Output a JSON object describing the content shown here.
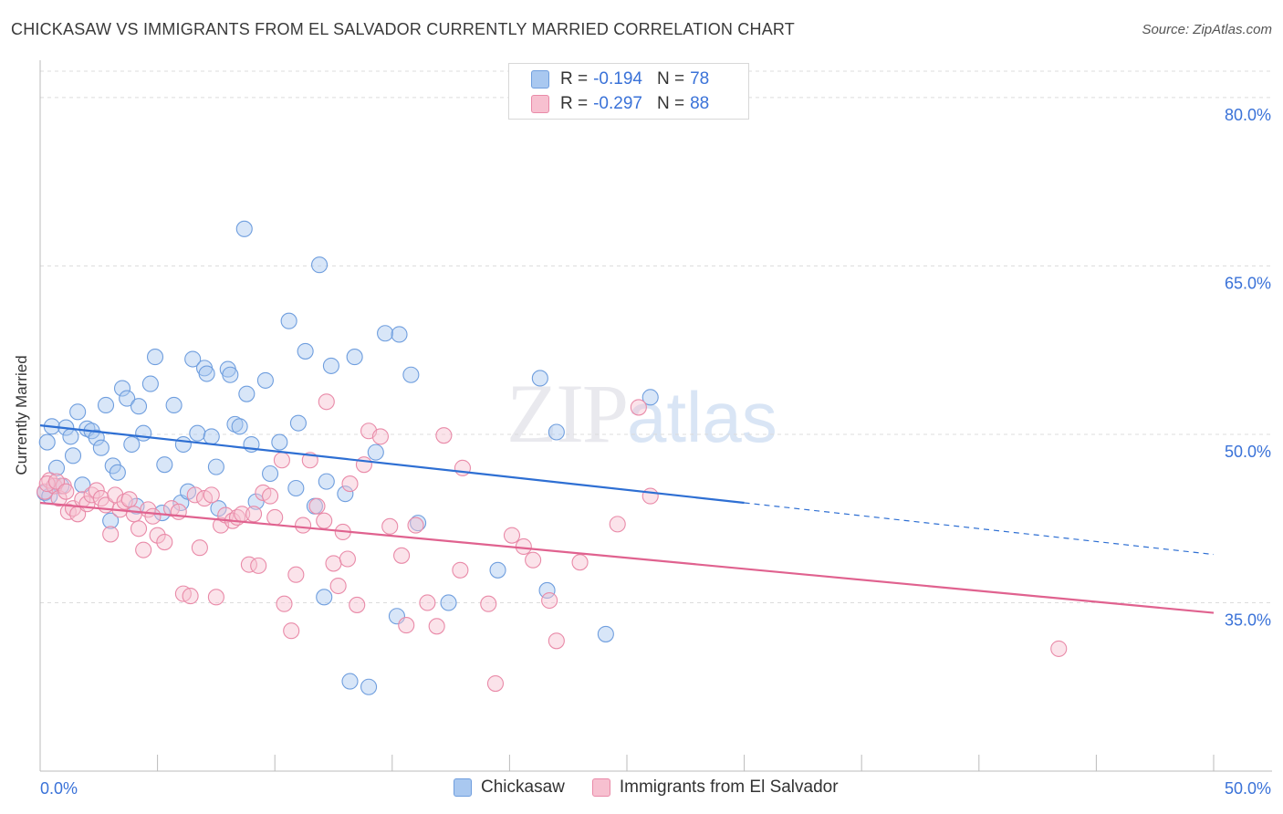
{
  "title": "CHICKASAW VS IMMIGRANTS FROM EL SALVADOR CURRENTLY MARRIED CORRELATION CHART",
  "source": "Source: ZipAtlas.com",
  "watermark": {
    "zip": "ZIP",
    "atlas": "atlas"
  },
  "legend_top": {
    "rows": [
      {
        "r_label": "R =",
        "r_value": "-0.194",
        "n_label": "N =",
        "n_value": "78",
        "color": "#a9c8f0",
        "border": "#6f9ede"
      },
      {
        "r_label": "R =",
        "r_value": "-0.297",
        "n_label": "N =",
        "n_value": "88",
        "color": "#f7c0d0",
        "border": "#e98aa8"
      }
    ]
  },
  "legend_bottom": {
    "items": [
      {
        "label": "Chickasaw",
        "color": "#a9c8f0",
        "border": "#6f9ede"
      },
      {
        "label": "Immigrants from El Salvador",
        "color": "#f7c0d0",
        "border": "#e98aa8"
      }
    ]
  },
  "chart_data": {
    "type": "scatter",
    "title": "CHICKASAW VS IMMIGRANTS FROM EL SALVADOR CURRENTLY MARRIED CORRELATION CHART",
    "xlabel": "",
    "ylabel": "Currently Married",
    "xlim": [
      0,
      50
    ],
    "ylim": [
      20,
      83
    ],
    "x_tick_labels": [
      "0.0%",
      "50.0%"
    ],
    "y_ticks": [
      35,
      50,
      65,
      80
    ],
    "y_tick_labels": [
      "35.0%",
      "50.0%",
      "65.0%",
      "80.0%"
    ],
    "grid": true,
    "series": [
      {
        "name": "Chickasaw",
        "color": "#6f9ede",
        "fill": "#a9c8f0",
        "trend": {
          "x0": 0,
          "y0": 50.8,
          "x1": 30,
          "y1": 43.9,
          "dash_to_x": 50,
          "dash_to_y": 39.3
        },
        "points": [
          [
            0.3,
            49.3
          ],
          [
            0.5,
            50.7
          ],
          [
            0.7,
            47.0
          ],
          [
            0.9,
            45.4
          ],
          [
            1.1,
            50.6
          ],
          [
            1.3,
            49.8
          ],
          [
            1.4,
            48.1
          ],
          [
            1.6,
            52.0
          ],
          [
            1.8,
            45.5
          ],
          [
            2.0,
            50.5
          ],
          [
            2.2,
            50.3
          ],
          [
            2.4,
            49.7
          ],
          [
            2.6,
            48.8
          ],
          [
            2.8,
            52.6
          ],
          [
            3.0,
            42.3
          ],
          [
            3.1,
            47.2
          ],
          [
            3.3,
            46.6
          ],
          [
            3.5,
            54.1
          ],
          [
            3.7,
            53.2
          ],
          [
            3.9,
            49.1
          ],
          [
            4.1,
            43.6
          ],
          [
            4.2,
            52.5
          ],
          [
            4.4,
            50.1
          ],
          [
            4.7,
            54.5
          ],
          [
            4.9,
            56.9
          ],
          [
            5.2,
            43.0
          ],
          [
            5.3,
            47.3
          ],
          [
            5.7,
            52.6
          ],
          [
            6.0,
            43.9
          ],
          [
            6.1,
            49.1
          ],
          [
            6.3,
            44.9
          ],
          [
            6.5,
            56.7
          ],
          [
            6.7,
            50.1
          ],
          [
            7.0,
            55.9
          ],
          [
            7.1,
            55.4
          ],
          [
            7.3,
            49.8
          ],
          [
            7.5,
            47.1
          ],
          [
            7.6,
            43.4
          ],
          [
            8.0,
            55.8
          ],
          [
            8.1,
            55.3
          ],
          [
            8.3,
            50.9
          ],
          [
            8.5,
            50.7
          ],
          [
            8.7,
            68.3
          ],
          [
            8.8,
            53.6
          ],
          [
            9.0,
            49.1
          ],
          [
            9.2,
            44.0
          ],
          [
            9.6,
            54.8
          ],
          [
            9.8,
            46.5
          ],
          [
            10.2,
            49.3
          ],
          [
            10.6,
            60.1
          ],
          [
            10.9,
            45.2
          ],
          [
            11.0,
            51.0
          ],
          [
            11.3,
            57.4
          ],
          [
            11.7,
            43.6
          ],
          [
            11.9,
            65.1
          ],
          [
            12.1,
            35.5
          ],
          [
            12.2,
            45.8
          ],
          [
            12.4,
            56.1
          ],
          [
            13.0,
            44.7
          ],
          [
            13.2,
            28.0
          ],
          [
            13.4,
            56.9
          ],
          [
            14.0,
            27.5
          ],
          [
            14.3,
            48.4
          ],
          [
            14.7,
            59.0
          ],
          [
            15.2,
            33.8
          ],
          [
            15.3,
            58.9
          ],
          [
            15.8,
            55.3
          ],
          [
            16.1,
            42.1
          ],
          [
            17.4,
            35.0
          ],
          [
            19.5,
            37.9
          ],
          [
            21.3,
            55.0
          ],
          [
            21.6,
            36.1
          ],
          [
            22.0,
            50.2
          ],
          [
            24.1,
            32.2
          ],
          [
            26.0,
            53.3
          ],
          [
            0.2,
            44.8
          ],
          [
            0.4,
            44.5
          ],
          [
            0.6,
            45.4
          ]
        ]
      },
      {
        "name": "Immigrants from El Salvador",
        "color": "#e98aa8",
        "fill": "#f7c0d0",
        "trend": {
          "x0": 0,
          "y0": 43.9,
          "x1": 50,
          "y1": 34.1
        },
        "points": [
          [
            0.2,
            44.9
          ],
          [
            0.4,
            45.9
          ],
          [
            0.6,
            45.4
          ],
          [
            0.8,
            44.3
          ],
          [
            1.0,
            45.4
          ],
          [
            1.2,
            43.1
          ],
          [
            1.4,
            43.4
          ],
          [
            1.6,
            42.9
          ],
          [
            1.8,
            44.2
          ],
          [
            2.0,
            43.8
          ],
          [
            2.2,
            44.6
          ],
          [
            2.4,
            45.0
          ],
          [
            2.6,
            44.3
          ],
          [
            2.8,
            43.7
          ],
          [
            3.0,
            41.1
          ],
          [
            3.2,
            44.6
          ],
          [
            3.4,
            43.3
          ],
          [
            3.6,
            44.0
          ],
          [
            3.8,
            44.2
          ],
          [
            4.0,
            42.9
          ],
          [
            4.2,
            41.6
          ],
          [
            4.4,
            39.7
          ],
          [
            4.6,
            43.3
          ],
          [
            4.8,
            42.7
          ],
          [
            5.0,
            41.0
          ],
          [
            5.3,
            40.4
          ],
          [
            5.6,
            43.4
          ],
          [
            5.9,
            43.1
          ],
          [
            6.1,
            35.8
          ],
          [
            6.4,
            35.6
          ],
          [
            6.6,
            44.6
          ],
          [
            6.8,
            39.9
          ],
          [
            7.0,
            44.3
          ],
          [
            7.3,
            44.6
          ],
          [
            7.5,
            35.5
          ],
          [
            7.7,
            41.9
          ],
          [
            7.9,
            42.8
          ],
          [
            8.2,
            42.3
          ],
          [
            8.4,
            42.6
          ],
          [
            8.6,
            42.9
          ],
          [
            8.9,
            38.4
          ],
          [
            9.1,
            42.9
          ],
          [
            9.3,
            38.3
          ],
          [
            9.5,
            44.8
          ],
          [
            9.8,
            44.5
          ],
          [
            10.0,
            42.6
          ],
          [
            10.3,
            47.7
          ],
          [
            10.4,
            34.9
          ],
          [
            10.7,
            32.5
          ],
          [
            10.9,
            37.5
          ],
          [
            11.2,
            41.9
          ],
          [
            11.5,
            47.7
          ],
          [
            11.8,
            43.6
          ],
          [
            12.1,
            42.3
          ],
          [
            12.2,
            52.9
          ],
          [
            12.5,
            38.5
          ],
          [
            12.7,
            36.5
          ],
          [
            12.9,
            41.3
          ],
          [
            13.1,
            38.9
          ],
          [
            13.2,
            45.6
          ],
          [
            13.5,
            34.8
          ],
          [
            13.8,
            47.3
          ],
          [
            14.0,
            50.3
          ],
          [
            14.5,
            49.8
          ],
          [
            14.9,
            41.8
          ],
          [
            15.4,
            39.2
          ],
          [
            15.6,
            33.0
          ],
          [
            16.0,
            41.9
          ],
          [
            16.5,
            35.0
          ],
          [
            16.9,
            32.9
          ],
          [
            17.2,
            49.9
          ],
          [
            17.9,
            37.9
          ],
          [
            18.0,
            47.0
          ],
          [
            19.1,
            34.9
          ],
          [
            19.4,
            27.8
          ],
          [
            20.1,
            41.0
          ],
          [
            20.6,
            40.0
          ],
          [
            21.0,
            38.8
          ],
          [
            21.7,
            35.2
          ],
          [
            22.0,
            31.6
          ],
          [
            23.0,
            38.6
          ],
          [
            24.6,
            42.0
          ],
          [
            25.5,
            52.4
          ],
          [
            26.0,
            44.5
          ],
          [
            43.4,
            30.9
          ],
          [
            0.3,
            45.6
          ],
          [
            0.7,
            45.8
          ],
          [
            1.1,
            44.9
          ]
        ]
      }
    ]
  }
}
